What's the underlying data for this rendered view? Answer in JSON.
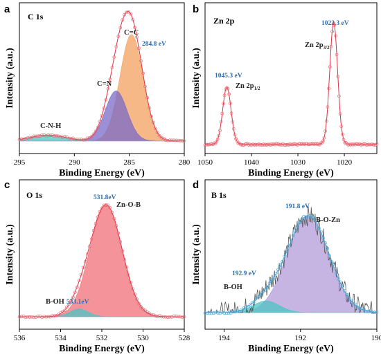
{
  "colors": {
    "red_markers": "#e46a74",
    "envelope": "#e03040",
    "blue_label": "#2b6cb0",
    "orange_fill": "#f4a060",
    "purple_fill": "#7a6ac8",
    "teal_fill": "#4cc4c4",
    "pink_fill": "#f07078",
    "lavender_fill": "#b39cd8",
    "b_markers": "#4aa8d8",
    "b_raw_line": "#555555"
  },
  "chart_data": [
    {
      "type": "line",
      "panel": "a",
      "title": "C 1s",
      "xlabel": "Binding Energy (eV)",
      "ylabel": "Intensity (a.u.)",
      "xlim": [
        295,
        280
      ],
      "x_reversed": true,
      "xticks": [
        "295",
        "290",
        "285",
        "280"
      ],
      "peaks": [
        {
          "label": "C=C",
          "center": 284.8,
          "center_label": "284.8 eV",
          "height": 1.0,
          "width": 1.05,
          "color": "orange_fill"
        },
        {
          "label": "C=N",
          "center": 286.2,
          "height": 0.47,
          "width": 1.0,
          "color": "purple_fill"
        },
        {
          "label": "C-N-H",
          "center": 292.4,
          "height": 0.055,
          "width": 1.6,
          "color": "teal_fill"
        }
      ],
      "baseline": 0.04
    },
    {
      "type": "line",
      "panel": "b",
      "title": "Zn 2p",
      "xlabel": "Binding Energy (eV)",
      "ylabel": "Intensity (a.u.)",
      "xlim": [
        1050,
        1013
      ],
      "x_reversed": true,
      "xticks": [
        "1050",
        "1040",
        "1030",
        "1020"
      ],
      "peaks": [
        {
          "label": "Zn 2p",
          "sub": "1/2",
          "center": 1045.3,
          "center_label": "1045.3 eV",
          "height": 0.47,
          "width": 0.9
        },
        {
          "label": "Zn 2p",
          "sub": "3/2",
          "center": 1022.3,
          "center_label": "1022.3 eV",
          "height": 1.0,
          "width": 0.85
        }
      ],
      "baseline": 0.03
    },
    {
      "type": "line",
      "panel": "c",
      "title": "O 1s",
      "xlabel": "Binding Energy (eV)",
      "ylabel": "Intensity (a.u.)",
      "xlim": [
        536,
        528
      ],
      "x_reversed": true,
      "xticks": [
        "536",
        "534",
        "532",
        "530",
        "528"
      ],
      "peaks": [
        {
          "label": "Zn-O-B",
          "center": 531.8,
          "center_label": "531.8eV",
          "height": 1.0,
          "width": 0.78,
          "color": "pink_fill"
        },
        {
          "label": "B-OH",
          "center": 533.1,
          "center_label": "533.1eV",
          "height": 0.07,
          "width": 0.45,
          "color": "teal_fill"
        }
      ],
      "baseline": 0.0
    },
    {
      "type": "line",
      "panel": "d",
      "title": "B 1s",
      "xlabel": "Binding Energy (eV)",
      "ylabel": "Intensity (a.u.)",
      "xlim": [
        194.5,
        190
      ],
      "x_reversed": true,
      "xticks": [
        "194",
        "192",
        "190"
      ],
      "peaks": [
        {
          "label": "B-O-Zn",
          "center": 191.8,
          "center_label": "191.8 eV",
          "height": 1.0,
          "width": 0.55,
          "color": "lavender_fill"
        },
        {
          "label": "B-OH",
          "center": 192.9,
          "center_label": "192.9 eV",
          "height": 0.12,
          "width": 0.35,
          "color": "teal_fill"
        }
      ],
      "baseline": 0.0
    }
  ]
}
